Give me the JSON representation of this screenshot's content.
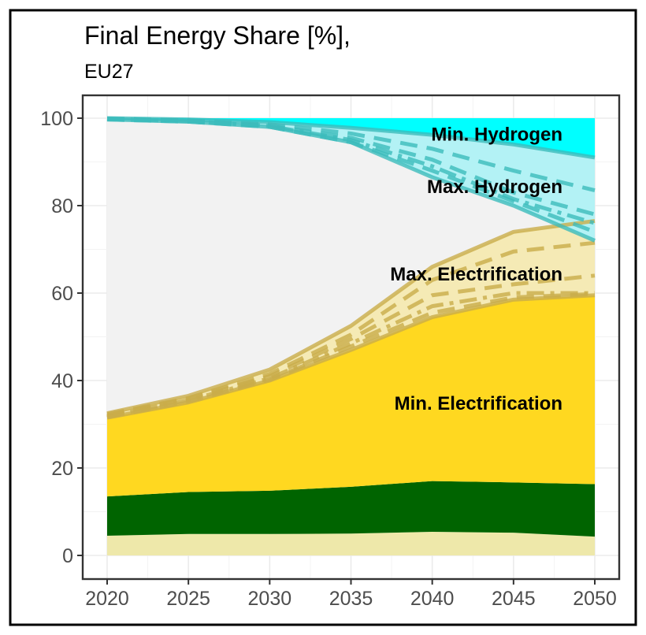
{
  "chart_data": {
    "type": "area",
    "title": "Final Energy Share [%],",
    "subtitle": "EU27",
    "xlabel": "",
    "ylabel": "",
    "xlim": [
      2020,
      2050
    ],
    "ylim": [
      0,
      100
    ],
    "x_ticks": [
      "2020",
      "2025",
      "2030",
      "2035",
      "2040",
      "2045",
      "2050"
    ],
    "y_ticks": [
      "0",
      "20",
      "40",
      "60",
      "80",
      "100"
    ],
    "grid": true,
    "x": [
      2020,
      2025,
      2030,
      2035,
      2040,
      2045,
      2050
    ],
    "stacked_layers": [
      {
        "color": "#eee8aa",
        "bottom": [
          0,
          0,
          0,
          0,
          0,
          0,
          0
        ],
        "top": [
          4.5,
          4.9,
          4.9,
          5.0,
          5.4,
          5.2,
          4.3
        ]
      },
      {
        "color": "#006400",
        "bottom": [
          4.5,
          4.9,
          4.9,
          5.0,
          5.4,
          5.2,
          4.3
        ],
        "top": [
          13.5,
          14.5,
          14.8,
          15.7,
          17.0,
          16.7,
          16.3
        ]
      },
      {
        "color": "#ffd820",
        "bottom": [
          13.5,
          14.5,
          14.8,
          15.7,
          17.0,
          16.7,
          16.3
        ],
        "top": [
          31.5,
          35.0,
          40.0,
          47.0,
          54.5,
          58.5,
          59.5
        ]
      },
      {
        "color": "#f5eab5",
        "bottom": [
          31.5,
          35.0,
          40.0,
          47.0,
          54.5,
          58.5,
          59.5
        ],
        "top": [
          32.5,
          36.5,
          42.5,
          52.5,
          66.0,
          74.0,
          76.5
        ]
      },
      {
        "color": "#f2f2f2",
        "bottom": [
          32.5,
          36.5,
          42.5,
          52.5,
          66.0,
          74.0,
          76.5
        ],
        "top": [
          99.7,
          99.2,
          98.0,
          94.5,
          86.5,
          80.0,
          72.0
        ]
      },
      {
        "color": "#b3f2f5",
        "bottom": [
          99.7,
          99.2,
          98.0,
          94.5,
          86.5,
          80.0,
          72.0
        ],
        "top": [
          100,
          99.7,
          99.1,
          97.8,
          96.2,
          94.0,
          91.0
        ]
      },
      {
        "color": "#00ffff",
        "bottom": [
          100,
          99.7,
          99.1,
          97.8,
          96.2,
          94.0,
          91.0
        ],
        "top": [
          100,
          100,
          100,
          100,
          100,
          100,
          100
        ]
      }
    ],
    "scenario_lines": {
      "electrification": {
        "color": "#c9ad4a",
        "lines": [
          {
            "style": "solid",
            "values": [
              32.5,
              36.5,
              42.5,
              52.5,
              66.0,
              74.0,
              76.5
            ]
          },
          {
            "style": "dashed",
            "values": [
              32.3,
              36.0,
              41.5,
              50.5,
              63.0,
              69.5,
              71.5
            ]
          },
          {
            "style": "dashed",
            "values": [
              32.0,
              35.8,
              41.0,
              49.5,
              59.5,
              62.0,
              64.0
            ]
          },
          {
            "style": "dashdot",
            "values": [
              31.8,
              35.5,
              40.5,
              48.5,
              57.0,
              60.0,
              60.0
            ]
          },
          {
            "style": "dashed",
            "values": [
              31.6,
              35.2,
              40.2,
              47.8,
              55.5,
              59.0,
              59.8
            ]
          },
          {
            "style": "solid",
            "values": [
              31.5,
              35.0,
              40.0,
              47.0,
              54.5,
              58.5,
              59.5
            ]
          }
        ]
      },
      "hydrogen": {
        "color": "#3cbcbc",
        "lines": [
          {
            "style": "solid",
            "values": [
              100,
              99.7,
              99.1,
              97.8,
              96.2,
              94.0,
              91.0
            ]
          },
          {
            "style": "dashed",
            "values": [
              99.9,
              99.5,
              98.6,
              96.5,
              93.0,
              88.0,
              83.5
            ]
          },
          {
            "style": "dashed",
            "values": [
              99.8,
              99.4,
              98.3,
              95.5,
              90.5,
              83.0,
              78.0
            ]
          },
          {
            "style": "dashdot",
            "values": [
              99.8,
              99.3,
              98.2,
              95.0,
              89.0,
              81.5,
              76.0
            ]
          },
          {
            "style": "dashed",
            "values": [
              99.7,
              99.2,
              98.0,
              94.5,
              88.0,
              81.0,
              74.0
            ]
          },
          {
            "style": "solid",
            "values": [
              99.7,
              99.2,
              98.0,
              94.5,
              86.5,
              80.0,
              72.0
            ]
          }
        ]
      }
    },
    "annotations": [
      {
        "text": "Min. Hydrogen",
        "x": 2048,
        "y": 96.5
      },
      {
        "text": "Max. Hydrogen",
        "x": 2048,
        "y": 84.5
      },
      {
        "text": "Max. Electrification",
        "x": 2048,
        "y": 64.5
      },
      {
        "text": "Min. Electrification",
        "x": 2048,
        "y": 35.0
      }
    ]
  }
}
